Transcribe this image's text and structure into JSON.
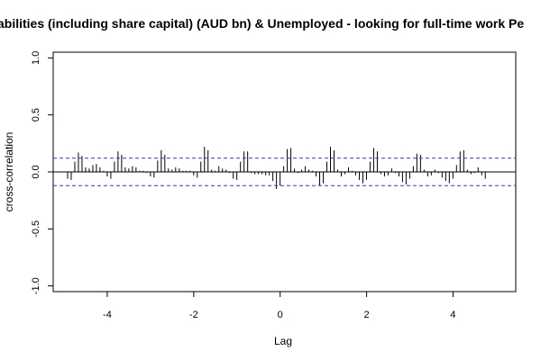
{
  "chart_data": {
    "type": "bar",
    "title": "abilities (including share capital) (AUD bn)  & Unemployed - looking for full-time work Pe",
    "xlabel": "Lag",
    "ylabel": "cross-correlation",
    "xlim": [
      -5.25,
      5.45
    ],
    "ylim": [
      -1.05,
      1.05
    ],
    "xticks": [
      -4,
      -2,
      0,
      2,
      4
    ],
    "xtick_labels": [
      "-4",
      "-2",
      "0",
      "2",
      "4"
    ],
    "yticks": [
      -1.0,
      -0.5,
      0.0,
      0.5,
      1.0
    ],
    "ytick_labels": [
      "-1.0",
      "-0.5",
      "0.0",
      "0.5",
      "1.0"
    ],
    "confidence_bounds": [
      0.12,
      -0.12
    ],
    "bound_color": "#3333cc",
    "lag_step": 0.0833,
    "first_lag": -4.9167,
    "values": [
      -0.06,
      -0.07,
      0.09,
      0.17,
      0.14,
      0.04,
      0.03,
      0.06,
      0.07,
      0.04,
      0.01,
      -0.04,
      -0.06,
      0.09,
      0.18,
      0.15,
      0.04,
      0.03,
      0.05,
      0.04,
      0.01,
      0.01,
      -0.01,
      -0.04,
      -0.05,
      0.1,
      0.19,
      0.15,
      0.03,
      0.02,
      0.04,
      0.03,
      0.01,
      0.01,
      0.01,
      -0.03,
      -0.05,
      0.09,
      0.22,
      0.19,
      0.02,
      0.01,
      0.05,
      0.03,
      0.02,
      -0.01,
      -0.06,
      -0.07,
      0.09,
      0.18,
      0.18,
      -0.01,
      -0.02,
      -0.02,
      -0.02,
      -0.03,
      -0.03,
      -0.08,
      -0.15,
      -0.12,
      0.05,
      0.2,
      0.21,
      0.03,
      -0.01,
      0.02,
      0.05,
      0.02,
      0.01,
      -0.04,
      -0.12,
      -0.1,
      0.09,
      0.22,
      0.19,
      0.02,
      -0.04,
      -0.02,
      0.04,
      0.01,
      -0.03,
      -0.07,
      -0.1,
      -0.07,
      0.09,
      0.21,
      0.18,
      -0.02,
      -0.04,
      -0.03,
      0.03,
      -0.01,
      -0.04,
      -0.09,
      -0.11,
      -0.06,
      0.05,
      0.16,
      0.15,
      0.02,
      -0.04,
      -0.03,
      0.02,
      -0.01,
      -0.05,
      -0.08,
      -0.1,
      -0.06,
      0.06,
      0.18,
      0.19,
      0.02,
      -0.02,
      -0.01,
      0.04,
      -0.03,
      -0.06
    ]
  }
}
